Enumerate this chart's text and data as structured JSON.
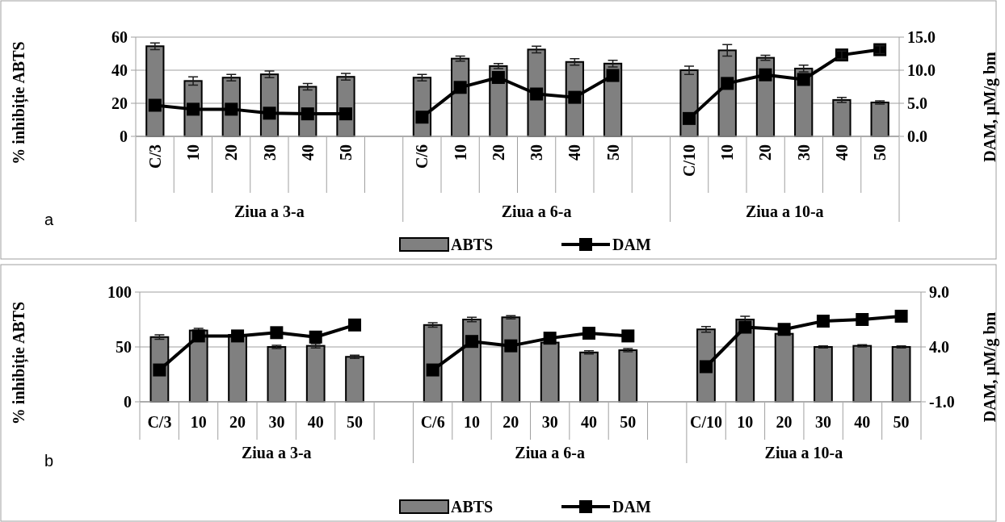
{
  "chart_data": [
    {
      "type": "bar",
      "ylabel": "% inhibiție ABTS",
      "y2label": "DAM, µM/g bm",
      "categories": [
        "C/3",
        "10",
        "20",
        "30",
        "40",
        "50",
        null,
        "C/6",
        "10",
        "20",
        "30",
        "40",
        "50",
        null,
        "C/10",
        "10",
        "20",
        "30",
        "40",
        "50"
      ],
      "ylim": [
        0,
        60
      ],
      "yticks": [
        0,
        20,
        40,
        60
      ],
      "y2lim": [
        0,
        15
      ],
      "y2ticks": [
        {
          "value": 0,
          "label": "0.0"
        },
        {
          "value": 5,
          "label": "5.0"
        },
        {
          "value": 10,
          "label": "10.0"
        },
        {
          "value": 15,
          "label": "15.0"
        }
      ],
      "grid": "y",
      "legend": "bottom",
      "marker": "square",
      "annotations": [
        "Ziua a 3-a",
        "Ziua a 6-a",
        "Ziua a 10-a",
        "a"
      ],
      "series": [
        {
          "name": "ABTS",
          "type": "bar",
          "color": "#808080",
          "values": [
            54.5,
            33.5,
            35.5,
            37.5,
            30,
            36,
            null,
            35.5,
            47,
            42.5,
            52.5,
            45,
            44,
            null,
            40,
            52,
            47.5,
            41,
            22,
            20.5
          ],
          "errors": [
            2,
            2.5,
            2,
            2,
            2,
            2,
            null,
            2,
            1.5,
            1.5,
            2,
            2,
            2,
            null,
            2.5,
            3.5,
            1.5,
            2,
            1.5,
            1
          ]
        },
        {
          "name": "DAM",
          "type": "line",
          "axis": "y2",
          "color": "#000000",
          "values": [
            4.7,
            4.1,
            4.1,
            3.5,
            3.4,
            3.4,
            null,
            2.9,
            7.4,
            8.9,
            6.4,
            5.9,
            9.2,
            null,
            2.7,
            8.0,
            9.3,
            8.6,
            12.3,
            13.1
          ],
          "errors": [
            null,
            null,
            null,
            null,
            null,
            null,
            null,
            null,
            null,
            null,
            null,
            null,
            null,
            null,
            null,
            null,
            null,
            null,
            0.6,
            0.6
          ]
        }
      ]
    },
    {
      "type": "bar",
      "ylabel": "% inhibiție ABTS",
      "y2label": "DAM, µM/g bm",
      "categories": [
        "C/3",
        "10",
        "20",
        "30",
        "40",
        "50",
        null,
        "C/6",
        "10",
        "20",
        "30",
        "40",
        "50",
        null,
        "C/10",
        "10",
        "20",
        "30",
        "40",
        "50"
      ],
      "ylim": [
        0,
        100
      ],
      "yticks": [
        0,
        50,
        100
      ],
      "y2lim": [
        -1,
        9
      ],
      "y2ticks": [
        {
          "value": -1,
          "label": "-1.0"
        },
        {
          "value": 4,
          "label": "4.0"
        },
        {
          "value": 9,
          "label": "9.0"
        }
      ],
      "grid": "y",
      "legend": "bottom",
      "marker": "square",
      "annotations": [
        "Ziua a 3-a",
        "Ziua a 6-a",
        "Ziua a 10-a",
        "b"
      ],
      "series": [
        {
          "name": "ABTS",
          "type": "bar",
          "color": "#808080",
          "values": [
            59,
            65,
            61,
            50,
            51,
            41,
            null,
            70,
            75,
            77,
            54,
            45,
            47,
            null,
            66,
            75,
            62,
            50,
            51,
            50
          ],
          "errors": [
            2,
            2,
            null,
            1.5,
            2,
            1.5,
            null,
            2,
            2,
            1.5,
            null,
            1.5,
            1.5,
            null,
            2.5,
            3,
            null,
            1,
            1,
            1
          ]
        },
        {
          "name": "DAM",
          "type": "line",
          "axis": "y2",
          "color": "#000000",
          "values": [
            1.9,
            5.0,
            5.0,
            5.3,
            4.9,
            6.0,
            null,
            1.9,
            4.5,
            4.1,
            4.8,
            5.25,
            5.0,
            null,
            2.2,
            5.8,
            5.6,
            6.35,
            6.5,
            6.8
          ]
        }
      ]
    }
  ]
}
